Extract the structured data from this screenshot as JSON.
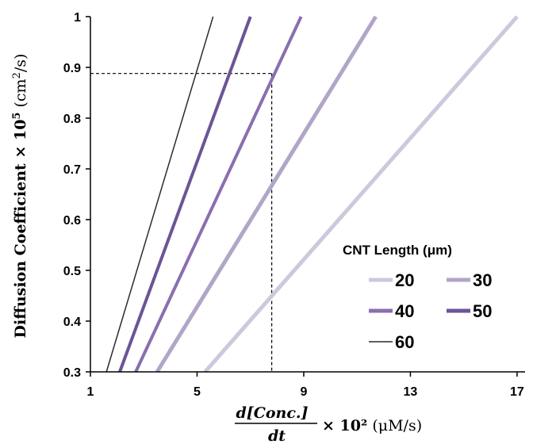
{
  "chart_data": {
    "type": "line",
    "xlabel": "d[Conc.]/dt × 10² (μM/s)",
    "xlabel_parts": {
      "numerator": "d[Conc.]",
      "denominator": "dt",
      "suffix": "× 10²",
      "units": "(μM/s)"
    },
    "ylabel": "Diffusion Coefficient × 10⁵ (cm²/s)",
    "ylabel_parts": {
      "main": "Diffusion Coefficient  × 10",
      "exp": "5",
      "units_open": " (cm",
      "units_exp": "2",
      "units_close": "/s)"
    },
    "xlim": [
      1,
      17.3
    ],
    "ylim": [
      0.3,
      1
    ],
    "x_ticks": [
      1,
      5,
      9,
      13,
      17
    ],
    "x_tick_labels": [
      "1",
      "5",
      "9",
      "13",
      "17"
    ],
    "y_ticks": [
      0.3,
      0.4,
      0.5,
      0.6,
      0.7,
      0.8,
      0.9,
      1.0
    ],
    "y_tick_labels": [
      "0.3",
      "0.4",
      "0.5",
      "0.6",
      "0.7",
      "0.8",
      "0.9",
      "1"
    ],
    "legend": {
      "title": "CNT Length (μm)",
      "position": "bottom-right"
    },
    "series": [
      {
        "name": "20",
        "color": "#ccc9dd",
        "line_weight": "thick",
        "points": [
          [
            5.3,
            0.3
          ],
          [
            17.0,
            1.0
          ]
        ]
      },
      {
        "name": "30",
        "color": "#b1a5c8",
        "line_weight": "thick",
        "points": [
          [
            3.5,
            0.3
          ],
          [
            11.7,
            1.0
          ]
        ]
      },
      {
        "name": "40",
        "color": "#8a6fb0",
        "line_weight": "medium",
        "points": [
          [
            2.7,
            0.3
          ],
          [
            8.9,
            1.0
          ]
        ]
      },
      {
        "name": "50",
        "color": "#6c5496",
        "line_weight": "medium",
        "points": [
          [
            2.1,
            0.3
          ],
          [
            7.0,
            1.0
          ]
        ]
      },
      {
        "name": "60",
        "color": "#2a2a38",
        "line_weight": "thin",
        "points": [
          [
            1.6,
            0.3
          ],
          [
            5.6,
            1.0
          ]
        ]
      }
    ],
    "reference_lines": {
      "x": 7.8,
      "y": 0.888,
      "style": "dashed"
    }
  }
}
